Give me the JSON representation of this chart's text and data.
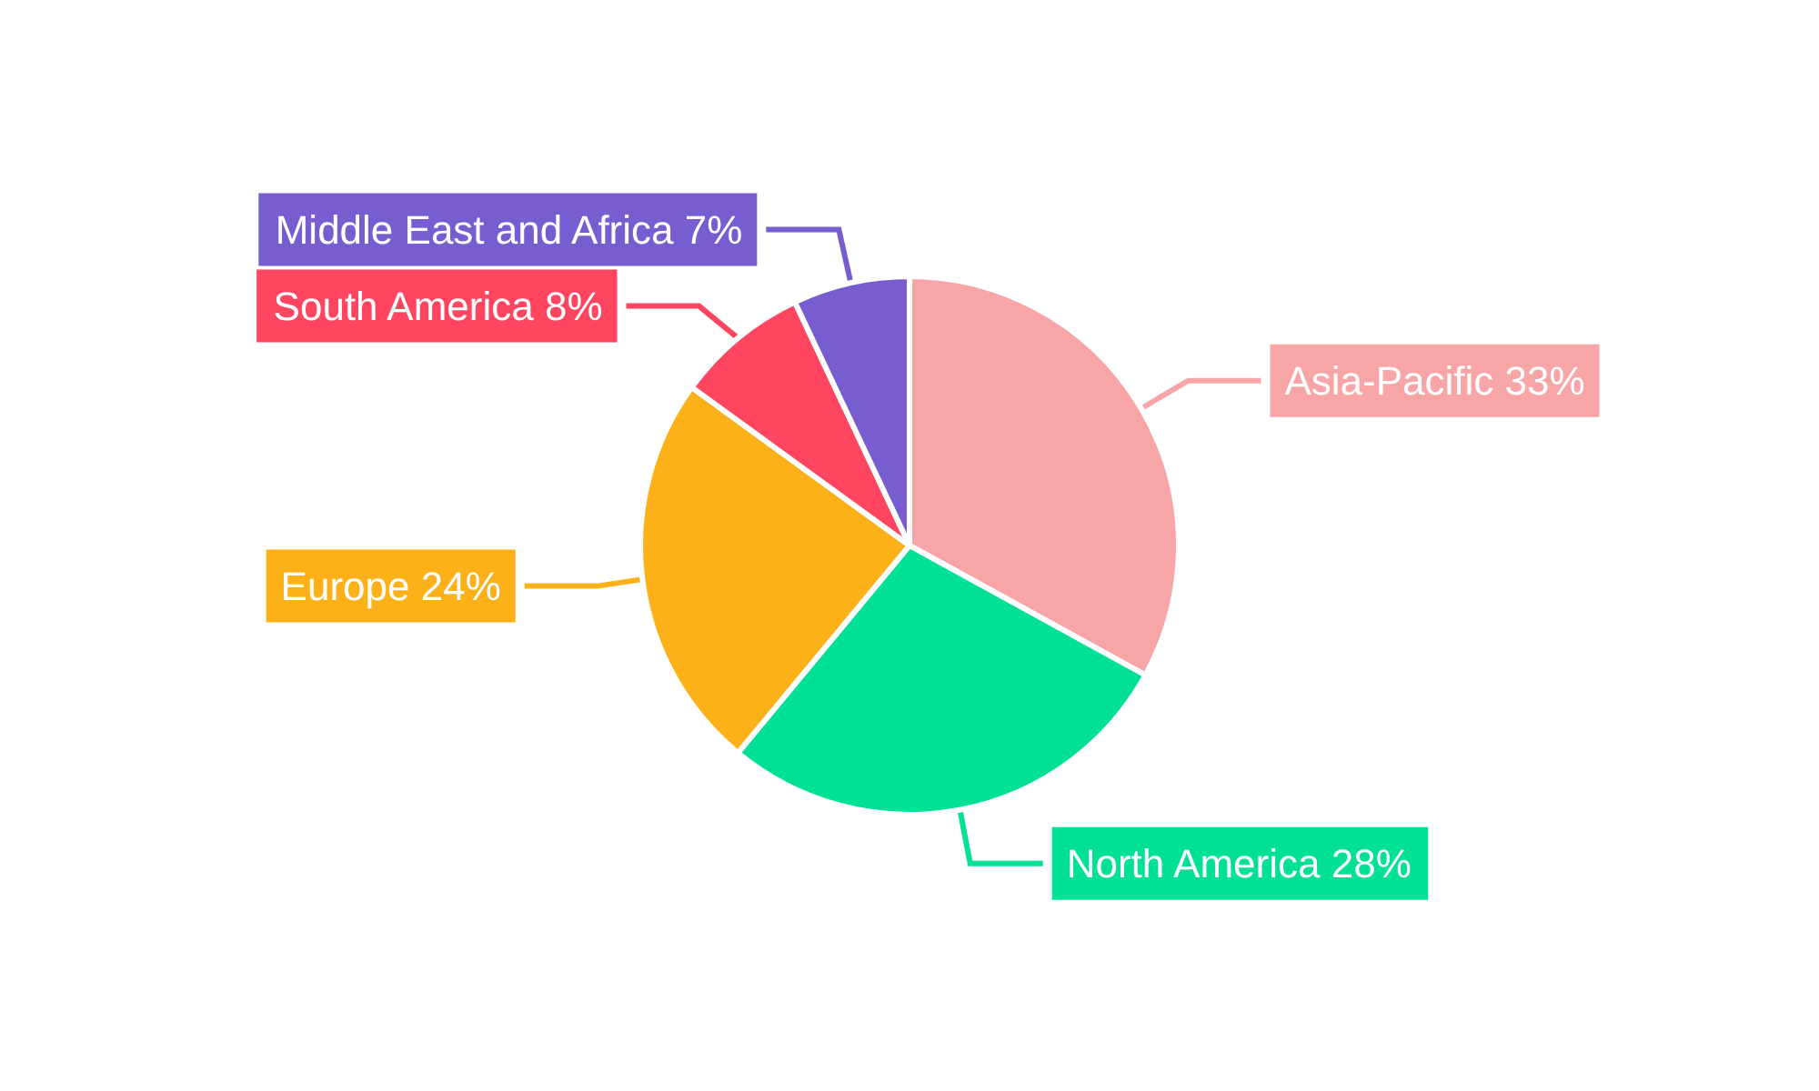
{
  "chart_data": {
    "type": "pie",
    "categories": [
      "Asia-Pacific",
      "North America",
      "Europe",
      "South America",
      "Middle East and Africa"
    ],
    "values": [
      33,
      28,
      24,
      8,
      7
    ],
    "colors": [
      "#f8a5a8",
      "#00e096",
      "#fdb119",
      "#ff4560",
      "#775dd0"
    ],
    "value_labels": [
      "33%",
      "28%",
      "24%",
      "8%",
      "7%"
    ]
  }
}
